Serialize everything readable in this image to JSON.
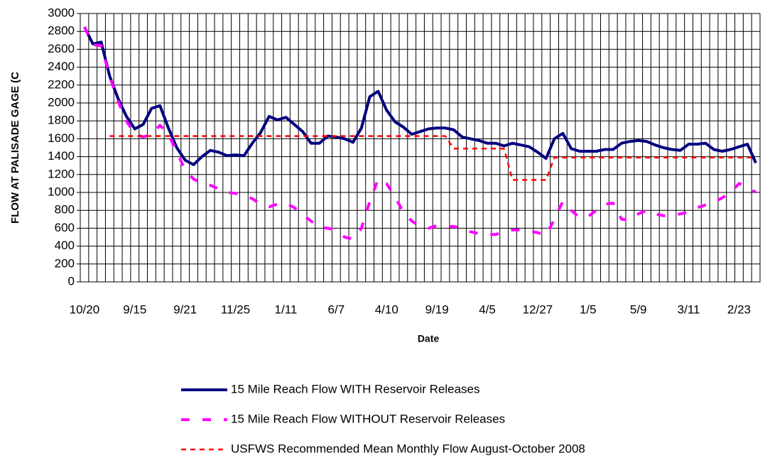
{
  "chart_data": {
    "type": "line",
    "y_label": "FLOW AT PALISADE GAGE (C",
    "x_label": "Date",
    "categories": [
      "10/20",
      null,
      null,
      null,
      null,
      null,
      "9/15",
      null,
      null,
      null,
      null,
      null,
      "9/21",
      null,
      null,
      null,
      null,
      null,
      "11/25",
      null,
      null,
      null,
      null,
      null,
      "1/11",
      null,
      null,
      null,
      null,
      null,
      "6/7",
      null,
      null,
      null,
      null,
      null,
      "4/10",
      null,
      null,
      null,
      null,
      null,
      "9/19",
      null,
      null,
      null,
      null,
      null,
      "4/5",
      null,
      null,
      null,
      null,
      null,
      "12/27",
      null,
      null,
      null,
      null,
      null,
      "1/5",
      null,
      null,
      null,
      null,
      null,
      "5/9",
      null,
      null,
      null,
      null,
      null,
      "3/11",
      null,
      null,
      null,
      null,
      null,
      "2/23",
      null,
      null
    ],
    "series": [
      {
        "name": "15 Mile Reach Flow WITH Reservoir Releases",
        "color": "#000080",
        "style": "solid",
        "values": [
          2850,
          2660,
          2680,
          2300,
          2050,
          1850,
          1710,
          1760,
          1940,
          1970,
          1720,
          1500,
          1360,
          1310,
          1400,
          1470,
          1450,
          1410,
          1420,
          1410,
          1550,
          1670,
          1850,
          1810,
          1840,
          1760,
          1680,
          1550,
          1550,
          1630,
          1620,
          1600,
          1560,
          1720,
          2070,
          2130,
          1920,
          1790,
          1730,
          1650,
          1680,
          1710,
          1720,
          1720,
          1700,
          1620,
          1600,
          1580,
          1550,
          1550,
          1520,
          1550,
          1530,
          1510,
          1450,
          1380,
          1600,
          1660,
          1490,
          1460,
          1460,
          1460,
          1480,
          1480,
          1550,
          1570,
          1580,
          1570,
          1530,
          1500,
          1480,
          1470,
          1540,
          1540,
          1550,
          1480,
          1460,
          1480,
          1510,
          1540,
          1330
        ]
      },
      {
        "name": "15 Mile Reach Flow WITHOUT Reservoir Releases",
        "color": "#ff00ff",
        "style": "long-dash",
        "values": [
          2850,
          2650,
          2640,
          2300,
          2020,
          1800,
          1650,
          1620,
          1650,
          1750,
          1650,
          1450,
          1250,
          1150,
          1100,
          1080,
          1040,
          1000,
          990,
          970,
          930,
          870,
          840,
          870,
          880,
          830,
          750,
          680,
          610,
          600,
          580,
          500,
          480,
          600,
          900,
          1150,
          1100,
          950,
          780,
          680,
          620,
          600,
          630,
          620,
          620,
          600,
          560,
          540,
          530,
          530,
          560,
          580,
          580,
          570,
          550,
          520,
          700,
          900,
          800,
          720,
          730,
          800,
          870,
          880,
          700,
          690,
          760,
          800,
          760,
          740,
          740,
          760,
          780,
          830,
          860,
          890,
          940,
          1000,
          1100,
          1060,
          1000
        ]
      },
      {
        "name": "USFWS Recommended Mean Monthly Flow August-October 2008",
        "color": "#ff0000",
        "style": "short-dash",
        "values": [
          null,
          null,
          null,
          1630,
          1630,
          1630,
          1630,
          1630,
          1630,
          1630,
          1630,
          1630,
          1630,
          1630,
          1630,
          1630,
          1630,
          1630,
          1630,
          1630,
          1630,
          1630,
          1630,
          1630,
          1630,
          1630,
          1630,
          1630,
          1630,
          1630,
          1630,
          1630,
          1630,
          1630,
          1630,
          1630,
          1630,
          1630,
          1630,
          1630,
          1630,
          1630,
          1630,
          1630,
          1490,
          1490,
          1490,
          1490,
          1490,
          1490,
          1490,
          1140,
          1140,
          1140,
          1140,
          1140,
          1390,
          1390,
          1390,
          1390,
          1390,
          1390,
          1390,
          1390,
          1390,
          1390,
          1390,
          1390,
          1390,
          1390,
          1390,
          1390,
          1390,
          1390,
          1390,
          1390,
          1390,
          1390,
          1390,
          1390,
          1390
        ]
      }
    ],
    "ylim": [
      0,
      3000
    ],
    "yticks": [
      0,
      200,
      400,
      600,
      800,
      1000,
      1200,
      1400,
      1600,
      1800,
      2000,
      2200,
      2400,
      2600,
      2800,
      3000
    ],
    "grid": true
  }
}
